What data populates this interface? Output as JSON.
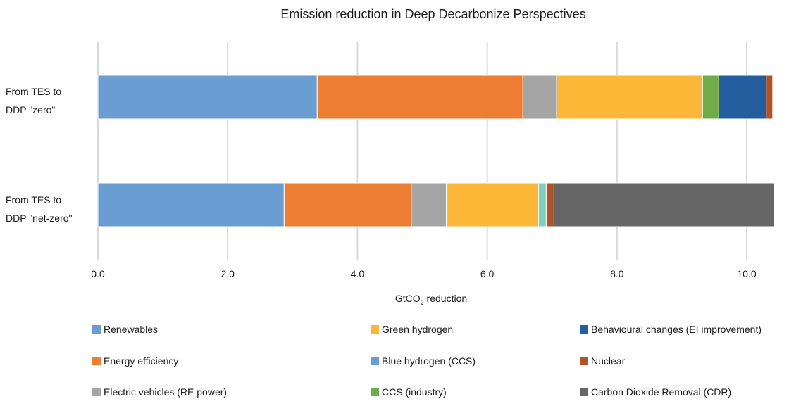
{
  "chart_data": {
    "type": "bar",
    "orientation": "horizontal",
    "stacked": true,
    "title": "Emission reduction in Deep Decarbonize Perspectives",
    "xlabel_main": "GtCO",
    "xlabel_sub": "2",
    "xlabel_rest": " reduction",
    "xlim": [
      0,
      10.4
    ],
    "xticks": [
      "0.0",
      "2.0",
      "4.0",
      "6.0",
      "8.0",
      "10.0"
    ],
    "xtick_values": [
      0,
      2,
      4,
      6,
      8,
      10
    ],
    "grid": true,
    "legend_position": "bottom",
    "categories": [
      [
        "From TES to",
        "DDP \"zero\""
      ],
      [
        "From TES to",
        "DDP \"net-zero\""
      ]
    ],
    "series": [
      {
        "name": "Renewables",
        "color": "#6a9ed3",
        "values": [
          3.38,
          2.87
        ]
      },
      {
        "name": "Energy efficiency",
        "color": "#ed7d31",
        "values": [
          3.17,
          1.96
        ]
      },
      {
        "name": "Electric vehicles (RE power)",
        "color": "#a5a5a5",
        "values": [
          0.52,
          0.54
        ]
      },
      {
        "name": "Green hydrogen",
        "color": "#fbb735",
        "values": [
          2.25,
          1.42
        ]
      },
      {
        "name": "Blue hydrogen (CCS)",
        "color": "#6a9ed3",
        "values": [
          0.0,
          0.0
        ]
      },
      {
        "name": "CCS (industry)",
        "color": "#70ad47",
        "values": [
          0.25,
          0.0
        ]
      },
      {
        "name": "Behavioural changes (EI improvement)",
        "color": "#255e9e",
        "values": [
          0.73,
          0.0
        ]
      },
      {
        "name": "Nuclear",
        "color": "#b0532b",
        "values": [
          0.1,
          0.12
        ]
      },
      {
        "name": "Carbon Dioxide Removal (CDR)",
        "color": "#666666",
        "values": [
          0.0,
          3.39
        ]
      },
      {
        "name": "",
        "color": "#7fd1b9",
        "values": [
          0.0,
          0.12
        ],
        "insert_before": "Nuclear"
      }
    ]
  }
}
